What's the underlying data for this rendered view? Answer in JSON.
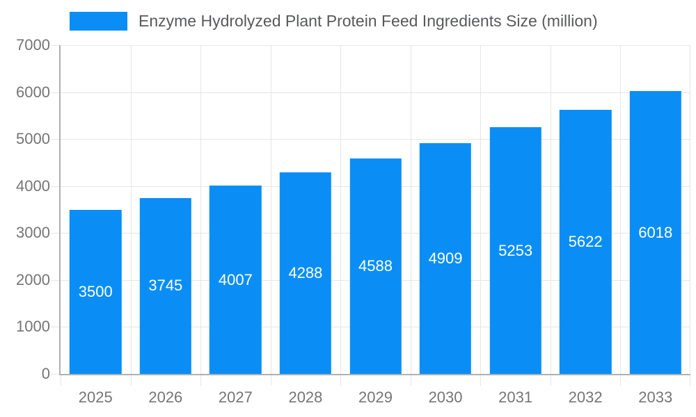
{
  "chart_data": {
    "type": "bar",
    "title": "",
    "legend": {
      "label": "Enzyme Hydrolyzed Plant Protein Feed Ingredients Size (million)",
      "position": "top"
    },
    "categories": [
      "2025",
      "2026",
      "2027",
      "2028",
      "2029",
      "2030",
      "2031",
      "2032",
      "2033"
    ],
    "values": [
      3500,
      3745,
      4007,
      4288,
      4588,
      4909,
      5253,
      5622,
      6018
    ],
    "xlabel": "",
    "ylabel": "",
    "ylim": [
      0,
      7000
    ],
    "ytick_step": 1000,
    "grid": true,
    "colors": {
      "bar": "#0a8ef6",
      "value_label": "#ffffff",
      "axis_label": "#757575",
      "legend_text": "#58595b",
      "gridline": "#e6e6e6",
      "axis_line": "#b0b0b0",
      "background": "#ffffff"
    }
  }
}
